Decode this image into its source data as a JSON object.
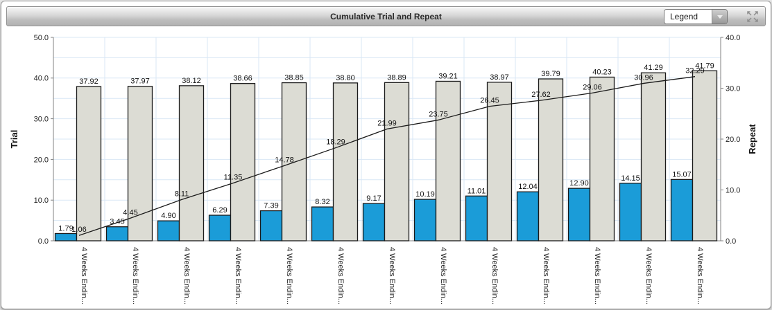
{
  "header": {
    "title": "Cumulative Trial and Repeat",
    "legend": {
      "value": "Legend"
    },
    "icons": {
      "dropdown": "chevron-down",
      "resize": "expand-arrows"
    }
  },
  "chart_data": {
    "type": "bar+line combo",
    "title": "Cumulative Trial and Repeat",
    "categories": [
      "4 Weeks Endin...",
      "4 Weeks Endin...",
      "4 Weeks Endin...",
      "4 Weeks Endin...",
      "4 Weeks Endin...",
      "4 Weeks Endin...",
      "4 Weeks Endin...",
      "4 Weeks Endin...",
      "4 Weeks Endin...",
      "4 Weeks Endin...",
      "4 Weeks Endin...",
      "4 Weeks Endin...",
      "4 Weeks Endin..."
    ],
    "series": [
      {
        "id": "trial-bars",
        "type": "bar",
        "axis": "left",
        "color": "#1b9cd8",
        "values": [
          1.79,
          3.45,
          4.9,
          6.29,
          7.39,
          8.32,
          9.17,
          10.19,
          11.01,
          12.04,
          12.9,
          14.15,
          15.07
        ]
      },
      {
        "id": "repeat-bars",
        "type": "bar",
        "axis": "left",
        "color": "#dcdcd4",
        "values": [
          37.92,
          37.97,
          38.12,
          38.66,
          38.85,
          38.8,
          38.89,
          39.21,
          38.97,
          39.79,
          40.23,
          41.29,
          41.79
        ]
      },
      {
        "id": "cumulative-line",
        "type": "line",
        "axis": "right",
        "color": "#1a1a1a",
        "values": [
          1.06,
          4.45,
          8.11,
          11.35,
          14.78,
          18.29,
          21.99,
          23.75,
          26.45,
          27.62,
          29.06,
          30.96,
          32.29
        ]
      }
    ],
    "left_axis": {
      "label": "Trial",
      "min": 0,
      "max": 50,
      "tick_values": [
        0,
        10,
        20,
        30,
        40,
        50
      ],
      "grid_step": 5
    },
    "right_axis": {
      "label": "Repeat",
      "min": 0,
      "max": 40,
      "tick_values": [
        0,
        10,
        20,
        30,
        40
      ]
    },
    "grid": true,
    "legend_position": "collapsed-dropdown",
    "colors": {
      "gridline": "#d9e7f5",
      "axis_line": "#808080",
      "label_text": "#111111"
    }
  }
}
